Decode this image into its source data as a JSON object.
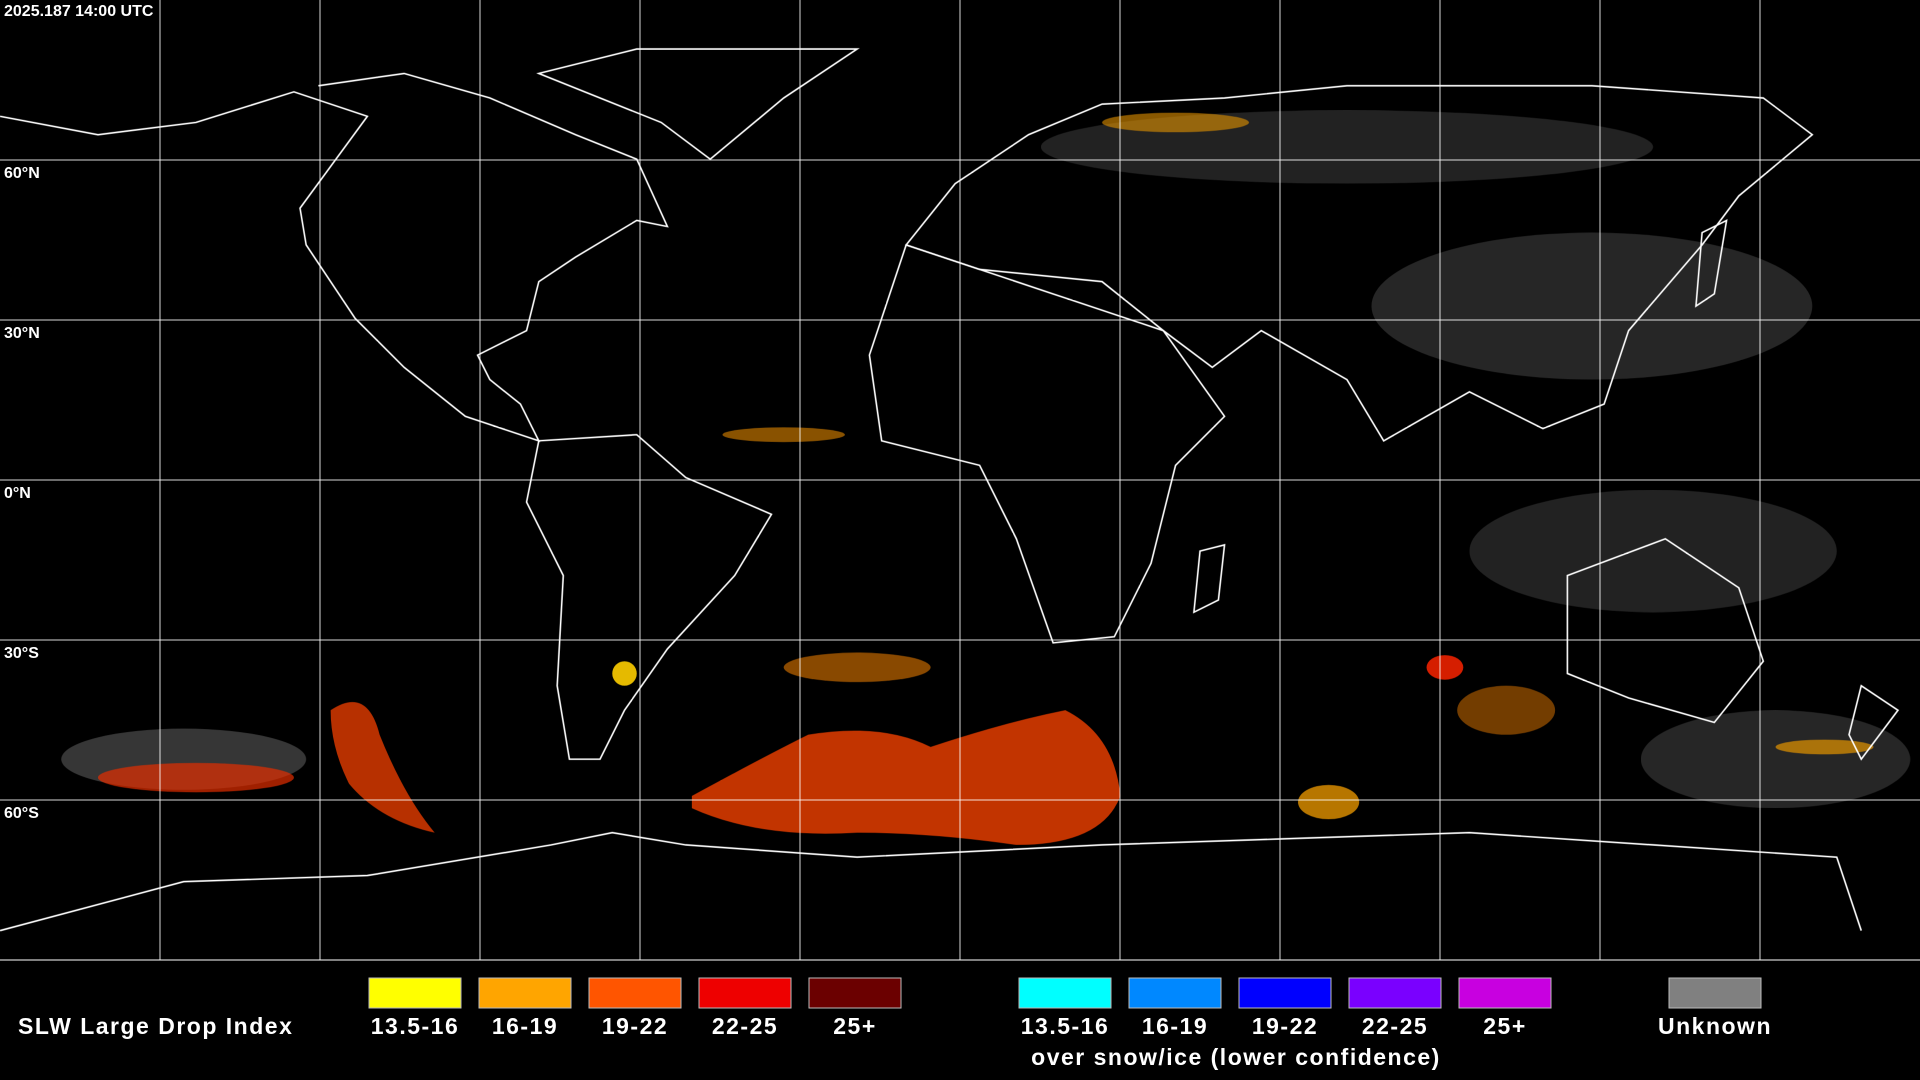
{
  "timestamp": "2025.187 14:00 UTC",
  "grid": {
    "latitude_labels": [
      "60°N",
      "30°N",
      "0°N",
      "30°S",
      "60°S"
    ]
  },
  "legend": {
    "title": "SLW Large Drop Index",
    "categories": [
      {
        "label": "13.5-16",
        "color": "#ffff00"
      },
      {
        "label": "16-19",
        "color": "#ffa500"
      },
      {
        "label": "19-22",
        "color": "#ff5500"
      },
      {
        "label": "22-25",
        "color": "#ee0000"
      },
      {
        "label": "25+",
        "color": "#6b0000"
      }
    ],
    "snow_ice_categories": [
      {
        "label": "13.5-16",
        "color": "#00ffff"
      },
      {
        "label": "16-19",
        "color": "#0088ff"
      },
      {
        "label": "19-22",
        "color": "#0000ff"
      },
      {
        "label": "22-25",
        "color": "#7a00ff"
      },
      {
        "label": "25+",
        "color": "#c800e0"
      }
    ],
    "snow_ice_caption": "over snow/ice (lower confidence)",
    "unknown": {
      "label": "Unknown",
      "color": "#808080"
    }
  }
}
